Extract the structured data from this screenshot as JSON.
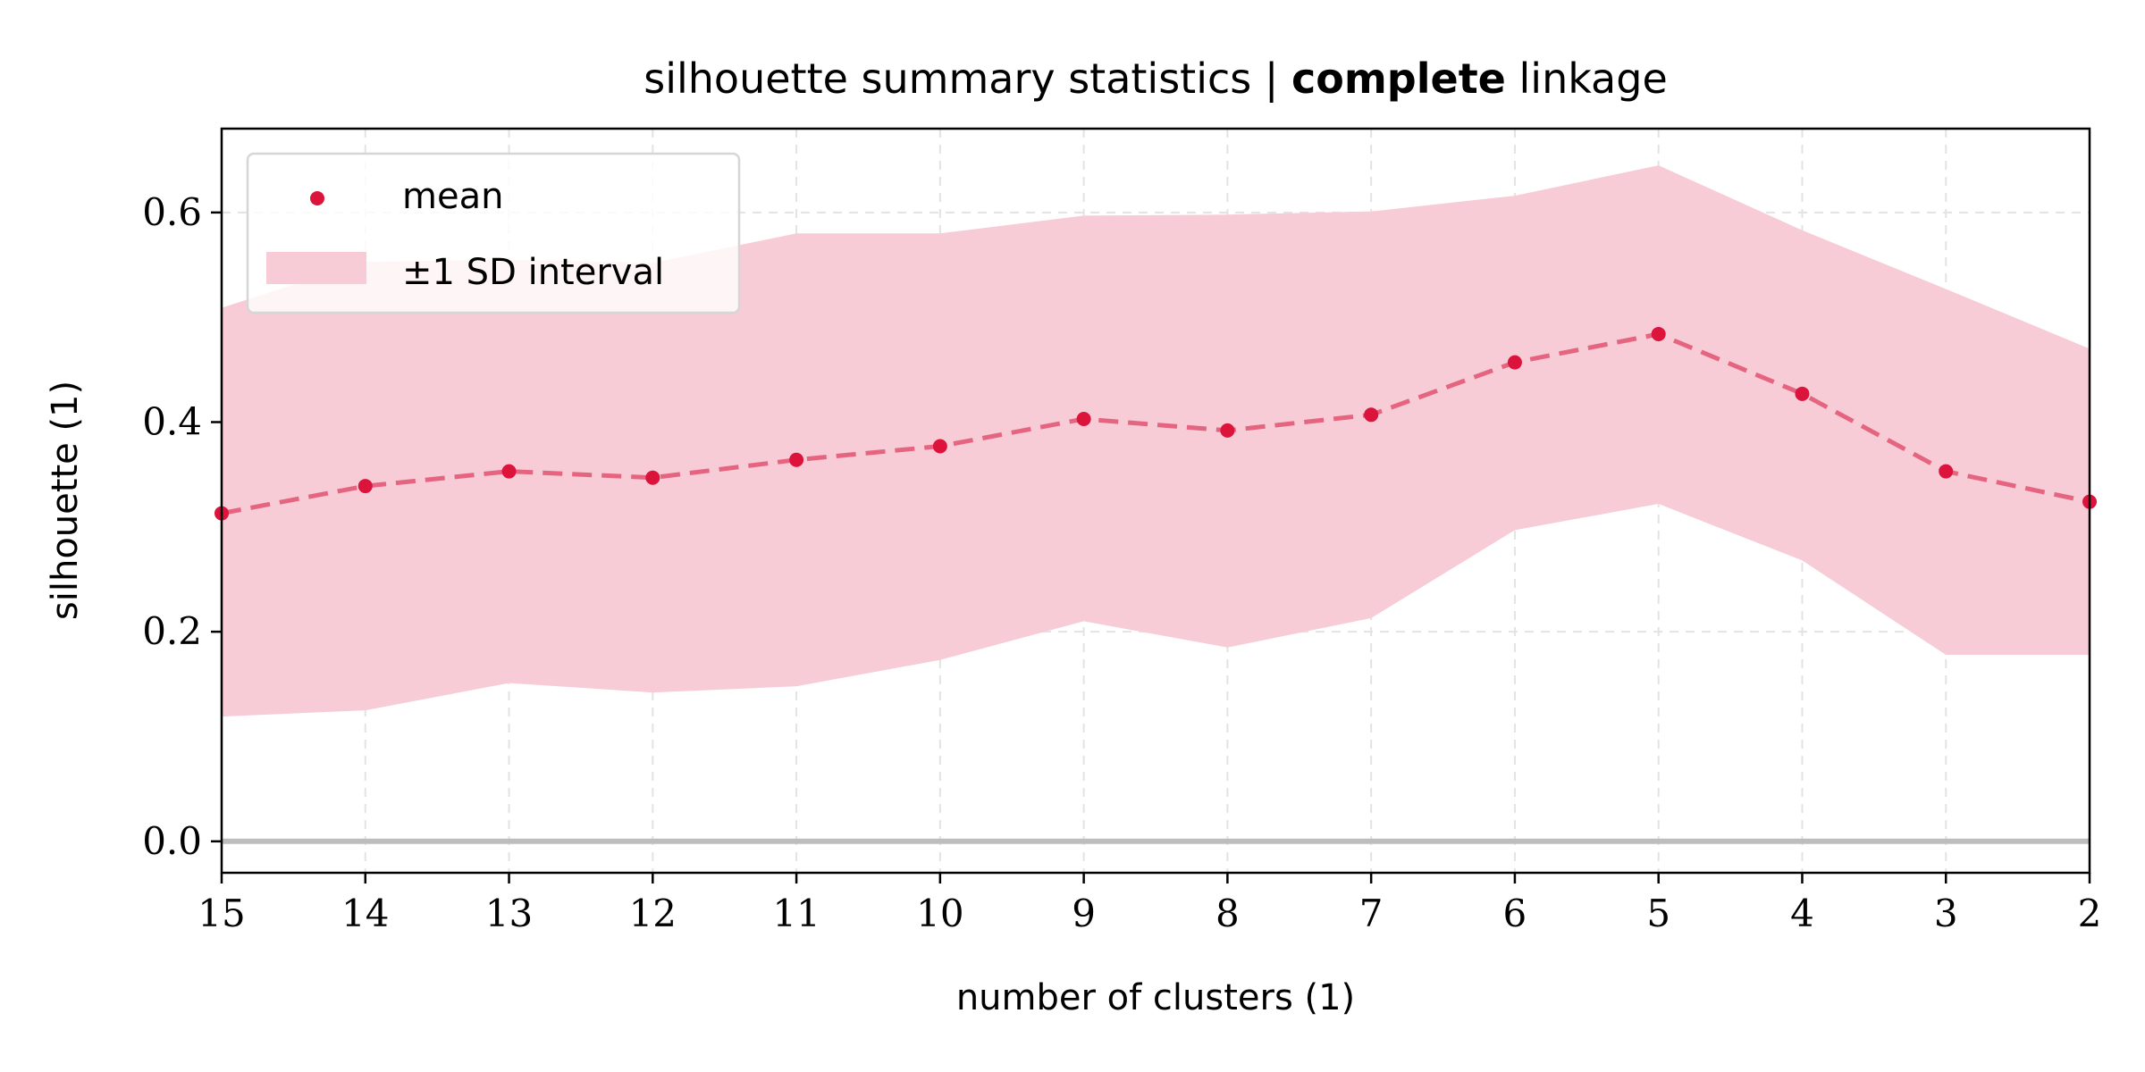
{
  "chart_data": {
    "type": "line",
    "title_main": "silhouette summary statistics | ",
    "title_bold": "complete",
    "title_end": " linkage",
    "xlabel": "number of clusters (1)",
    "ylabel": "silhouette (1)",
    "x": [
      15,
      14,
      13,
      12,
      11,
      10,
      9,
      8,
      7,
      6,
      5,
      4,
      3,
      2
    ],
    "x_ticks": [
      "15",
      "14",
      "13",
      "12",
      "11",
      "10",
      "9",
      "8",
      "7",
      "6",
      "5",
      "4",
      "3",
      "2"
    ],
    "y_ticks": [
      "0.0",
      "0.2",
      "0.4",
      "0.6"
    ],
    "y_tick_values": [
      0.0,
      0.2,
      0.4,
      0.6
    ],
    "ylim": [
      -0.03,
      0.68
    ],
    "x_inverted": true,
    "grid": true,
    "legend_position": "top-left",
    "series": [
      {
        "name": "mean",
        "values": [
          0.313,
          0.339,
          0.353,
          0.347,
          0.364,
          0.377,
          0.403,
          0.392,
          0.407,
          0.457,
          0.484,
          0.427,
          0.353,
          0.324
        ]
      }
    ],
    "band": {
      "name": "±1 SD interval",
      "lower": [
        0.119,
        0.125,
        0.151,
        0.142,
        0.148,
        0.173,
        0.21,
        0.185,
        0.213,
        0.297,
        0.322,
        0.268,
        0.178,
        0.178
      ],
      "upper": [
        0.509,
        0.553,
        0.555,
        0.552,
        0.58,
        0.58,
        0.597,
        0.598,
        0.601,
        0.616,
        0.645,
        0.583,
        0.527,
        0.47
      ]
    },
    "zero_line": 0.0,
    "colors": {
      "mean_marker": "#dc143c",
      "mean_line": "#e56580",
      "band_fill": "#f7ccd6",
      "zero_line": "#bdbdbd",
      "grid": "#e3e3e3"
    }
  }
}
